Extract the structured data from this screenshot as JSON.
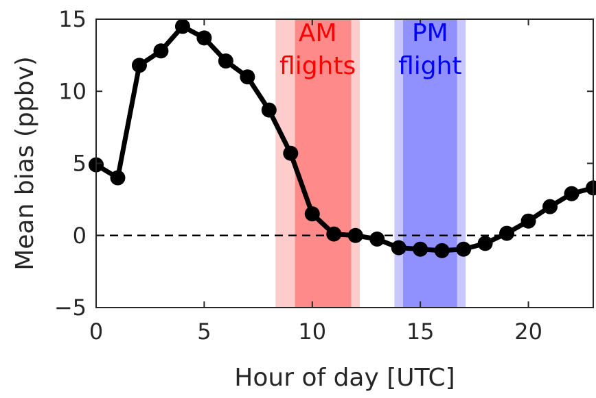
{
  "chart_data": {
    "type": "line",
    "xlabel": "Hour of day [UTC]",
    "ylabel": "Mean bias (ppbv)",
    "xlim": [
      0,
      23
    ],
    "ylim": [
      -5,
      15
    ],
    "xticks": [
      0,
      5,
      10,
      15,
      20
    ],
    "yticks": [
      -5,
      0,
      5,
      10,
      15
    ],
    "grid": false,
    "reference_line": {
      "y": 0,
      "style": "dashed",
      "color": "#000000"
    },
    "series": [
      {
        "color": "#000000",
        "x": [
          0,
          1,
          2,
          3,
          4,
          5,
          6,
          7,
          8,
          9,
          10,
          11,
          12,
          13,
          14,
          15,
          16,
          17,
          18,
          19,
          20,
          21,
          22,
          23
        ],
        "y": [
          4.9,
          4.0,
          11.8,
          12.8,
          14.5,
          13.7,
          12.1,
          11.0,
          8.7,
          5.7,
          1.5,
          0.1,
          0.0,
          -0.25,
          -0.85,
          -0.95,
          -1.05,
          -0.95,
          -0.55,
          0.15,
          1.0,
          2.0,
          2.9,
          3.3
        ]
      }
    ],
    "bands": [
      {
        "label_lines": [
          "AM",
          "flights"
        ],
        "outer": [
          8.3,
          12.2
        ],
        "inner": [
          9.2,
          11.8
        ],
        "outer_color": "#ffcccc",
        "inner_color": "#ff8a8a",
        "text_color": "#ff0000"
      },
      {
        "label_lines": [
          "PM",
          "flight"
        ],
        "outer": [
          13.8,
          17.1
        ],
        "inner": [
          14.2,
          16.7
        ],
        "outer_color": "#c8c8ff",
        "inner_color": "#9090ff",
        "text_color": "#0000ff"
      }
    ]
  }
}
